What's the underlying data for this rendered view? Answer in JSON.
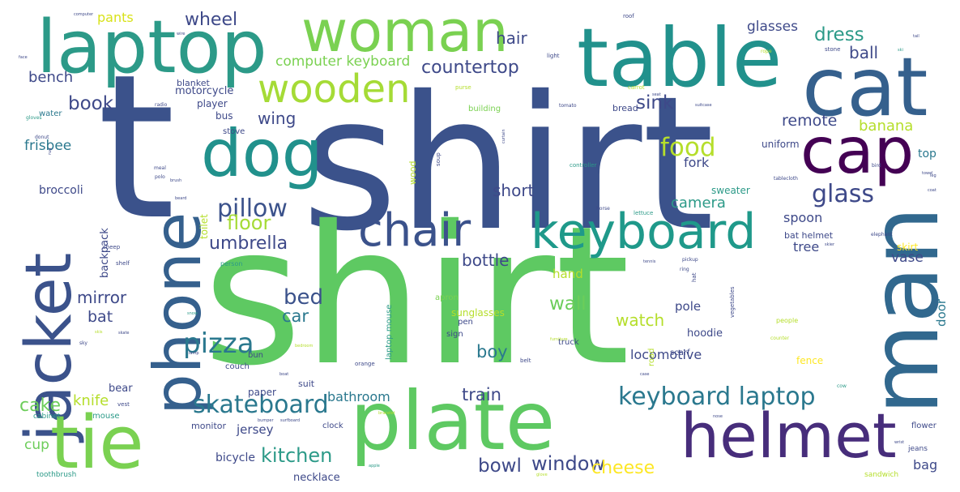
{
  "words": [
    {
      "text": "shirt",
      "color": "#3b528b"
    },
    {
      "text": "shirt",
      "color": "#5ec962"
    },
    {
      "text": "t",
      "color": "#3b528b"
    },
    {
      "text": "table",
      "color": "#21918c"
    },
    {
      "text": "laptop",
      "color": "#2c9a88"
    },
    {
      "text": "woman",
      "color": "#7ad151"
    },
    {
      "text": "cat",
      "color": "#35608d"
    },
    {
      "text": "dog",
      "color": "#21918c"
    },
    {
      "text": "cap",
      "color": "#440154"
    },
    {
      "text": "wooden",
      "color": "#a5db36"
    },
    {
      "text": "man",
      "color": "#31688e"
    },
    {
      "text": "jacket",
      "color": "#3b528b"
    },
    {
      "text": "phone",
      "color": "#35608d"
    },
    {
      "text": "chair",
      "color": "#3b528b"
    },
    {
      "text": "keyboard",
      "color": "#1f998a"
    },
    {
      "text": "plate",
      "color": "#5ec962"
    },
    {
      "text": "tie",
      "color": "#7ad151"
    },
    {
      "text": "helmet",
      "color": "#472d7b"
    },
    {
      "text": "skateboard",
      "color": "#2a788e"
    },
    {
      "text": "keyboard laptop",
      "color": "#2a788e"
    },
    {
      "text": "pizza",
      "color": "#2a788e"
    },
    {
      "text": "pillow",
      "color": "#3b528b"
    },
    {
      "text": "glass",
      "color": "#3e4989"
    },
    {
      "text": "food",
      "color": "#b5de2b"
    },
    {
      "text": "umbrella",
      "color": "#3e4989"
    },
    {
      "text": "bed",
      "color": "#3b528b"
    },
    {
      "text": "window",
      "color": "#3e4989"
    },
    {
      "text": "bowl",
      "color": "#3e4989"
    },
    {
      "text": "kitchen",
      "color": "#2c9a88"
    },
    {
      "text": "cake",
      "color": "#6ccd5a"
    },
    {
      "text": "floor",
      "color": "#a5db36"
    },
    {
      "text": "sink",
      "color": "#3e4989"
    },
    {
      "text": "wheel",
      "color": "#3e4989"
    },
    {
      "text": "dress",
      "color": "#2c9a88"
    },
    {
      "text": "book",
      "color": "#3e4989"
    },
    {
      "text": "countertop",
      "color": "#3e4989"
    },
    {
      "text": "hair",
      "color": "#3e4989"
    },
    {
      "text": "ball",
      "color": "#3e4989"
    },
    {
      "text": "bench",
      "color": "#3e4989"
    },
    {
      "text": "computer keyboard",
      "color": "#7ad151"
    },
    {
      "text": "glasses",
      "color": "#3e4989"
    },
    {
      "text": "wing",
      "color": "#3e4989"
    },
    {
      "text": "remote",
      "color": "#3e4989"
    },
    {
      "text": "banana",
      "color": "#b5de2b"
    },
    {
      "text": "camera",
      "color": "#2c9a88"
    },
    {
      "text": "fork",
      "color": "#3e4989"
    },
    {
      "text": "watch",
      "color": "#b5de2b"
    },
    {
      "text": "wall",
      "color": "#6ccd5a"
    },
    {
      "text": "boy",
      "color": "#2a788e"
    },
    {
      "text": "car",
      "color": "#2a788e"
    },
    {
      "text": "bat",
      "color": "#3e4989"
    },
    {
      "text": "mirror",
      "color": "#3e4989"
    },
    {
      "text": "cheese",
      "color": "#fde725"
    },
    {
      "text": "train",
      "color": "#3e4989"
    },
    {
      "text": "bottle",
      "color": "#3e4989"
    },
    {
      "text": "short",
      "color": "#3e4989"
    },
    {
      "text": "frisbee",
      "color": "#2a788e"
    },
    {
      "text": "knife",
      "color": "#b5de2b"
    },
    {
      "text": "spoon",
      "color": "#3e4989"
    },
    {
      "text": "vase",
      "color": "#3e4989"
    },
    {
      "text": "bag",
      "color": "#3e4989"
    },
    {
      "text": "cup",
      "color": "#6ccd5a"
    },
    {
      "text": "tree",
      "color": "#3e4989"
    },
    {
      "text": "pants",
      "color": "#d8e219"
    },
    {
      "text": "motorcycle",
      "color": "#3e4989"
    },
    {
      "text": "bathroom",
      "color": "#2a788e"
    },
    {
      "text": "door",
      "color": "#2a788e"
    },
    {
      "text": "locomotive",
      "color": "#3e4989"
    },
    {
      "text": "hand",
      "color": "#b5de2b"
    },
    {
      "text": "pole",
      "color": "#3e4989"
    },
    {
      "text": "top",
      "color": "#2a788e"
    },
    {
      "text": "uniform",
      "color": "#3e4989"
    },
    {
      "text": "broccoli",
      "color": "#3e4989"
    },
    {
      "text": "backpack",
      "color": "#3e4989"
    },
    {
      "text": "bear",
      "color": "#3e4989"
    },
    {
      "text": "jersey",
      "color": "#3e4989"
    },
    {
      "text": "bicycle",
      "color": "#3e4989"
    },
    {
      "text": "necklace",
      "color": "#3e4989"
    },
    {
      "text": "bus",
      "color": "#3e4989"
    },
    {
      "text": "player",
      "color": "#3e4989"
    },
    {
      "text": "blanket",
      "color": "#3e4989"
    },
    {
      "text": "building",
      "color": "#7ad151"
    },
    {
      "text": "bread",
      "color": "#3e4989"
    },
    {
      "text": "hoodie",
      "color": "#3e4989"
    },
    {
      "text": "sweater",
      "color": "#2c9a88"
    },
    {
      "text": "skirt",
      "color": "#fde725"
    },
    {
      "text": "bat helmet",
      "color": "#3e4989"
    },
    {
      "text": "fence",
      "color": "#fde725"
    },
    {
      "text": "paper",
      "color": "#3e4989"
    },
    {
      "text": "monitor",
      "color": "#3e4989"
    },
    {
      "text": "suit",
      "color": "#3e4989"
    },
    {
      "text": "scarf",
      "color": "#3e4989"
    },
    {
      "text": "sunglasses",
      "color": "#b5de2b"
    },
    {
      "text": "apron",
      "color": "#7ad151"
    },
    {
      "text": "water",
      "color": "#2a788e"
    },
    {
      "text": "stove",
      "color": "#3e4989"
    },
    {
      "text": "toilet",
      "color": "#b5de2b"
    },
    {
      "text": "mouse",
      "color": "#2c9a88"
    },
    {
      "text": "laptop mouse",
      "color": "#2c9a88"
    },
    {
      "text": "wood",
      "color": "#b5de2b"
    },
    {
      "text": "road",
      "color": "#b5de2b"
    },
    {
      "text": "couch",
      "color": "#3e4989"
    },
    {
      "text": "bun",
      "color": "#3e4989"
    },
    {
      "text": "sign",
      "color": "#3e4989"
    },
    {
      "text": "pen",
      "color": "#3e4989"
    },
    {
      "text": "truck",
      "color": "#3e4989"
    },
    {
      "text": "clock",
      "color": "#3e4989"
    },
    {
      "text": "flower",
      "color": "#3e4989"
    },
    {
      "text": "jeans",
      "color": "#3e4989"
    },
    {
      "text": "sandwich",
      "color": "#b5de2b"
    },
    {
      "text": "toothbrush",
      "color": "#2c9a88"
    },
    {
      "text": "cabinet",
      "color": "#2c9a88"
    },
    {
      "text": "vest",
      "color": "#3e4989"
    },
    {
      "text": "orange",
      "color": "#3e4989"
    },
    {
      "text": "belt",
      "color": "#3e4989"
    },
    {
      "text": "vegetables",
      "color": "#3e4989"
    },
    {
      "text": "people",
      "color": "#b5de2b"
    },
    {
      "text": "tablecloth",
      "color": "#3e4989"
    },
    {
      "text": "controller",
      "color": "#2c9a88"
    },
    {
      "text": "soup",
      "color": "#3e4989"
    },
    {
      "text": "horse",
      "color": "#3e4989"
    },
    {
      "text": "lettuce",
      "color": "#2c9a88"
    },
    {
      "text": "person",
      "color": "#2c9a88"
    },
    {
      "text": "shelf",
      "color": "#3e4989"
    },
    {
      "text": "sheep",
      "color": "#3e4989"
    },
    {
      "text": "tomato",
      "color": "#3e4989"
    },
    {
      "text": "purse",
      "color": "#b5de2b"
    },
    {
      "text": "stone",
      "color": "#3e4989"
    },
    {
      "text": "light",
      "color": "#3e4989"
    },
    {
      "text": "roof",
      "color": "#3e4989"
    },
    {
      "text": "bird",
      "color": "#3e4989"
    },
    {
      "text": "rope",
      "color": "#b5de2b"
    },
    {
      "text": "carrot",
      "color": "#b5de2b"
    },
    {
      "text": "elephant",
      "color": "#3e4989"
    },
    {
      "text": "pickup",
      "color": "#3e4989"
    },
    {
      "text": "ring",
      "color": "#3e4989"
    },
    {
      "text": "tennis",
      "color": "#3e4989"
    },
    {
      "text": "hat",
      "color": "#3e4989"
    },
    {
      "text": "counter",
      "color": "#b5de2b"
    },
    {
      "text": "cow",
      "color": "#2c9a88"
    },
    {
      "text": "gloves",
      "color": "#2c9a88"
    },
    {
      "text": "donut",
      "color": "#3e4989"
    },
    {
      "text": "polo",
      "color": "#3e4989"
    },
    {
      "text": "meal",
      "color": "#3e4989"
    },
    {
      "text": "radio",
      "color": "#3e4989"
    },
    {
      "text": "computer",
      "color": "#3e4989"
    },
    {
      "text": "bedroom",
      "color": "#b5de2b"
    },
    {
      "text": "bumper",
      "color": "#3e4989"
    },
    {
      "text": "apple",
      "color": "#2c9a88"
    },
    {
      "text": "bracelet",
      "color": "#b5de2b"
    },
    {
      "text": "boat",
      "color": "#3e4989"
    },
    {
      "text": "sky",
      "color": "#3e4989"
    },
    {
      "text": "skate",
      "color": "#3e4989"
    },
    {
      "text": "beard",
      "color": "#3e4989"
    },
    {
      "text": "surfboard",
      "color": "#3e4989"
    },
    {
      "text": "rug",
      "color": "#3e4989"
    },
    {
      "text": "case",
      "color": "#3e4989"
    },
    {
      "text": "brush",
      "color": "#3e4989"
    },
    {
      "text": "furniture",
      "color": "#b5de2b"
    },
    {
      "text": "curtain",
      "color": "#3e4989"
    },
    {
      "text": "suitcase",
      "color": "#3e4989"
    },
    {
      "text": "towel",
      "color": "#3e4989"
    },
    {
      "text": "face",
      "color": "#3e4989"
    },
    {
      "text": "snow",
      "color": "#2c9a88"
    },
    {
      "text": "wrist",
      "color": "#3e4989"
    },
    {
      "text": "skis",
      "color": "#b5de2b"
    },
    {
      "text": "tail",
      "color": "#3e4989"
    },
    {
      "text": "lamp",
      "color": "#3e4989"
    },
    {
      "text": "leg",
      "color": "#3e4989"
    },
    {
      "text": "nose",
      "color": "#3e4989"
    },
    {
      "text": "seat",
      "color": "#3e4989"
    },
    {
      "text": "ski",
      "color": "#2c9a88"
    },
    {
      "text": "coat",
      "color": "#3e4989"
    },
    {
      "text": "glove",
      "color": "#b5de2b"
    },
    {
      "text": "wire",
      "color": "#3e4989"
    },
    {
      "text": "skier",
      "color": "#3e4989"
    }
  ]
}
